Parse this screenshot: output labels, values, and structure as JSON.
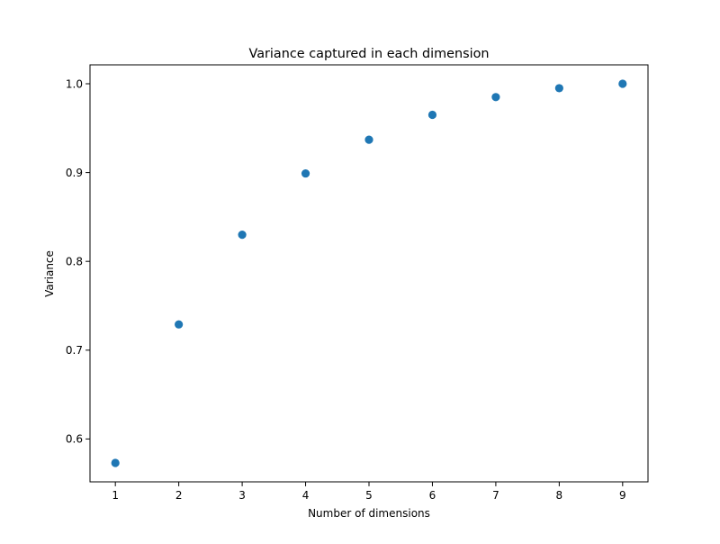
{
  "chart_data": {
    "type": "scatter",
    "title": "Variance captured in each dimension",
    "xlabel": "Number of dimensions",
    "ylabel": "Variance",
    "x": [
      1,
      2,
      3,
      4,
      5,
      6,
      7,
      8,
      9
    ],
    "y": [
      0.573,
      0.729,
      0.83,
      0.899,
      0.937,
      0.965,
      0.985,
      0.995,
      1.0
    ],
    "xlim": [
      0.6,
      9.4
    ],
    "ylim": [
      0.5517,
      1.0213
    ],
    "x_ticks": [
      "1",
      "2",
      "3",
      "4",
      "5",
      "6",
      "7",
      "8",
      "9"
    ],
    "y_ticks": [
      "0.6",
      "0.7",
      "0.8",
      "0.9",
      "1.0"
    ],
    "y_tick_values": [
      0.6,
      0.7,
      0.8,
      0.9,
      1.0
    ],
    "grid": false,
    "marker_color": "#1f77b4"
  }
}
